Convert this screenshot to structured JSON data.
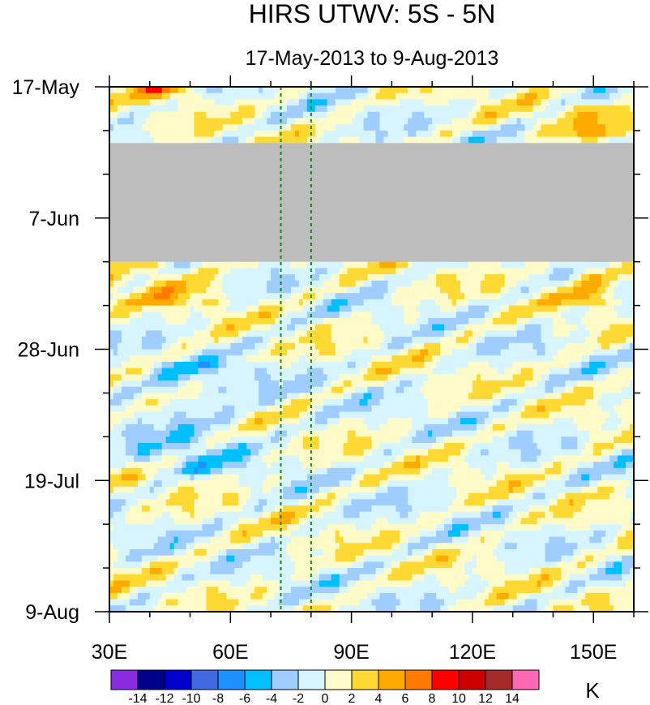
{
  "chart_data": {
    "type": "heatmap",
    "title": "HIRS UTWV: 5S - 5N",
    "subtitle": "17-May-2013 to 9-Aug-2013",
    "x_range": [
      30,
      160
    ],
    "x_ticks": [
      30,
      60,
      90,
      120,
      150
    ],
    "x_tick_labels": [
      "30E",
      "60E",
      "90E",
      "120E",
      "150E"
    ],
    "y_ticks": [
      0,
      21,
      42,
      63,
      84
    ],
    "y_tick_labels": [
      "17-May",
      "7-Jun",
      "28-Jun",
      "19-Jul",
      "9-Aug"
    ],
    "y_range_days": [
      0,
      84
    ],
    "missing_period_days": [
      9,
      28
    ],
    "missing_color": "#bdbdbd",
    "reference_lines_lon": [
      72.5,
      80
    ],
    "reference_line_color": "#118811",
    "colorbar": {
      "unit": "K",
      "levels": [
        -14,
        -12,
        -10,
        -8,
        -6,
        -4,
        -2,
        0,
        2,
        4,
        6,
        8,
        10,
        12,
        14
      ],
      "labels": [
        "-14",
        "-12",
        "-10",
        "-8",
        "-6",
        "-4",
        "-2",
        "0",
        "2",
        "4",
        "6",
        "8",
        "10",
        "12",
        "14"
      ],
      "colors": [
        "#8a2be2",
        "#00008b",
        "#0000cd",
        "#4169e1",
        "#1e90ff",
        "#00bfff",
        "#9fcdff",
        "#d6f5ff",
        "#fffbc8",
        "#ffd933",
        "#ffaa00",
        "#ff7a00",
        "#ff0000",
        "#cc0000",
        "#a52a2a",
        "#ff69b4"
      ]
    }
  }
}
